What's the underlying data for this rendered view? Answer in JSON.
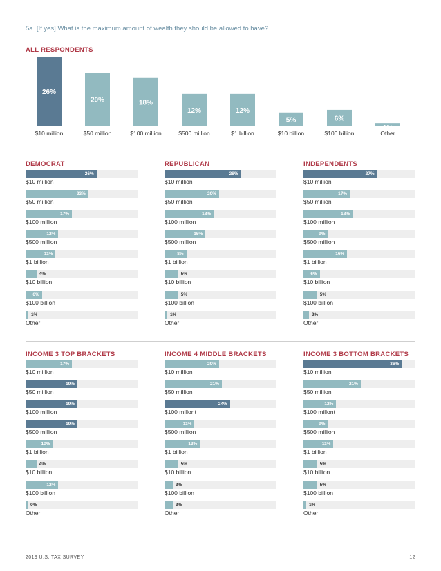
{
  "question": "5a.  [If yes] What is the maximum amount of wealth they should be allowed to have?",
  "colors": {
    "accent": "#b03a48",
    "dark_bar": "#5a7a93",
    "light_bar": "#92bac0",
    "track": "#eeeeee"
  },
  "footer": {
    "left": "2019 U.S. TAX SURVEY",
    "page": "12"
  },
  "chart_data": [
    {
      "type": "bar",
      "title": "ALL RESPONDENTS",
      "categories": [
        "$10 million",
        "$50 million",
        "$100 million",
        "$500 million",
        "$1 billion",
        "$10 billion",
        "$100 billion",
        "Other"
      ],
      "values": [
        26,
        20,
        18,
        12,
        12,
        5,
        6,
        1
      ],
      "value_labels": [
        "26%",
        "20%",
        "18%",
        "12%",
        "12%",
        "5%",
        "6%",
        "1%"
      ],
      "highlight": [
        true,
        false,
        false,
        false,
        false,
        false,
        false,
        false
      ],
      "ylim": [
        0,
        26
      ]
    },
    {
      "type": "bar",
      "orientation": "horizontal",
      "title": "DEMOCRAT",
      "categories": [
        "$10 million",
        "$50 million",
        "$100 million",
        "$500 million",
        "$1 billion",
        "$10 billion",
        "$100 billion",
        "Other"
      ],
      "values": [
        26,
        23,
        17,
        12,
        11,
        4,
        6,
        1
      ],
      "value_labels": [
        "26%",
        "23%",
        "17%",
        "12%",
        "11%",
        "4%",
        "6%",
        "1%"
      ],
      "highlight": [
        true,
        false,
        false,
        false,
        false,
        false,
        false,
        false
      ],
      "xlim": [
        0,
        41
      ]
    },
    {
      "type": "bar",
      "orientation": "horizontal",
      "title": "REPUBLICAN",
      "categories": [
        "$10 million",
        "$50 million",
        "$100 million",
        "$500 million",
        "$1 billion",
        "$10 billion",
        "$100 billion",
        "Other"
      ],
      "values": [
        28,
        20,
        18,
        15,
        8,
        5,
        5,
        1
      ],
      "value_labels": [
        "28%",
        "20%",
        "18%",
        "15%",
        "8%",
        "5%",
        "5%",
        "1%"
      ],
      "highlight": [
        true,
        false,
        false,
        false,
        false,
        false,
        false,
        false
      ],
      "xlim": [
        0,
        41
      ]
    },
    {
      "type": "bar",
      "orientation": "horizontal",
      "title": "INDEPENDENTS",
      "categories": [
        "$10 million",
        "$50 million",
        "$100 million",
        "$500 million",
        "$1 billion",
        "$10 billion",
        "$100 billion",
        "Other"
      ],
      "values": [
        27,
        17,
        18,
        9,
        16,
        6,
        5,
        2
      ],
      "value_labels": [
        "27%",
        "17%",
        "18%",
        "9%",
        "16%",
        "6%",
        "5%",
        "2%"
      ],
      "highlight": [
        true,
        false,
        false,
        false,
        false,
        false,
        false,
        false
      ],
      "xlim": [
        0,
        41
      ]
    },
    {
      "type": "bar",
      "orientation": "horizontal",
      "title": "INCOME 3 TOP BRACKETS",
      "categories": [
        "$10 million",
        "$50 million",
        "$100 million",
        "$500 million",
        "$1 billion",
        "$10 billion",
        "$100 billion",
        "Other"
      ],
      "values": [
        17,
        19,
        19,
        19,
        10,
        4,
        12,
        0
      ],
      "value_labels": [
        "17%",
        "19%",
        "19%",
        "19%",
        "10%",
        "4%",
        "12%",
        "0%"
      ],
      "highlight": [
        false,
        true,
        true,
        true,
        false,
        false,
        false,
        false
      ],
      "xlim": [
        0,
        41
      ]
    },
    {
      "type": "bar",
      "orientation": "horizontal",
      "title": "INCOME 4 MIDDLE BRACKETS",
      "categories": [
        "$10 million",
        "$50 million",
        "$100 millont",
        "$500 million",
        "$1 billion",
        "$10 billion",
        "$100 billion",
        "Other"
      ],
      "values": [
        20,
        21,
        24,
        11,
        13,
        5,
        3,
        3
      ],
      "value_labels": [
        "20%",
        "21%",
        "24%",
        "11%",
        "13%",
        "5%",
        "3%",
        "3%"
      ],
      "highlight": [
        false,
        false,
        true,
        false,
        false,
        false,
        false,
        false
      ],
      "xlim": [
        0,
        41
      ]
    },
    {
      "type": "bar",
      "orientation": "horizontal",
      "title": "INCOME 3 BOTTOM BRACKETS",
      "categories": [
        "$10 million",
        "$50 million",
        "$100 millont",
        "$500 million",
        "$1 billion",
        "$10 billion",
        "$100 billion",
        "Other"
      ],
      "values": [
        36,
        21,
        12,
        9,
        11,
        5,
        5,
        1
      ],
      "value_labels": [
        "36%",
        "21%",
        "12%",
        "9%",
        "11%",
        "5%",
        "5%",
        "1%"
      ],
      "highlight": [
        true,
        false,
        false,
        false,
        false,
        false,
        false,
        false
      ],
      "xlim": [
        0,
        41
      ]
    }
  ]
}
